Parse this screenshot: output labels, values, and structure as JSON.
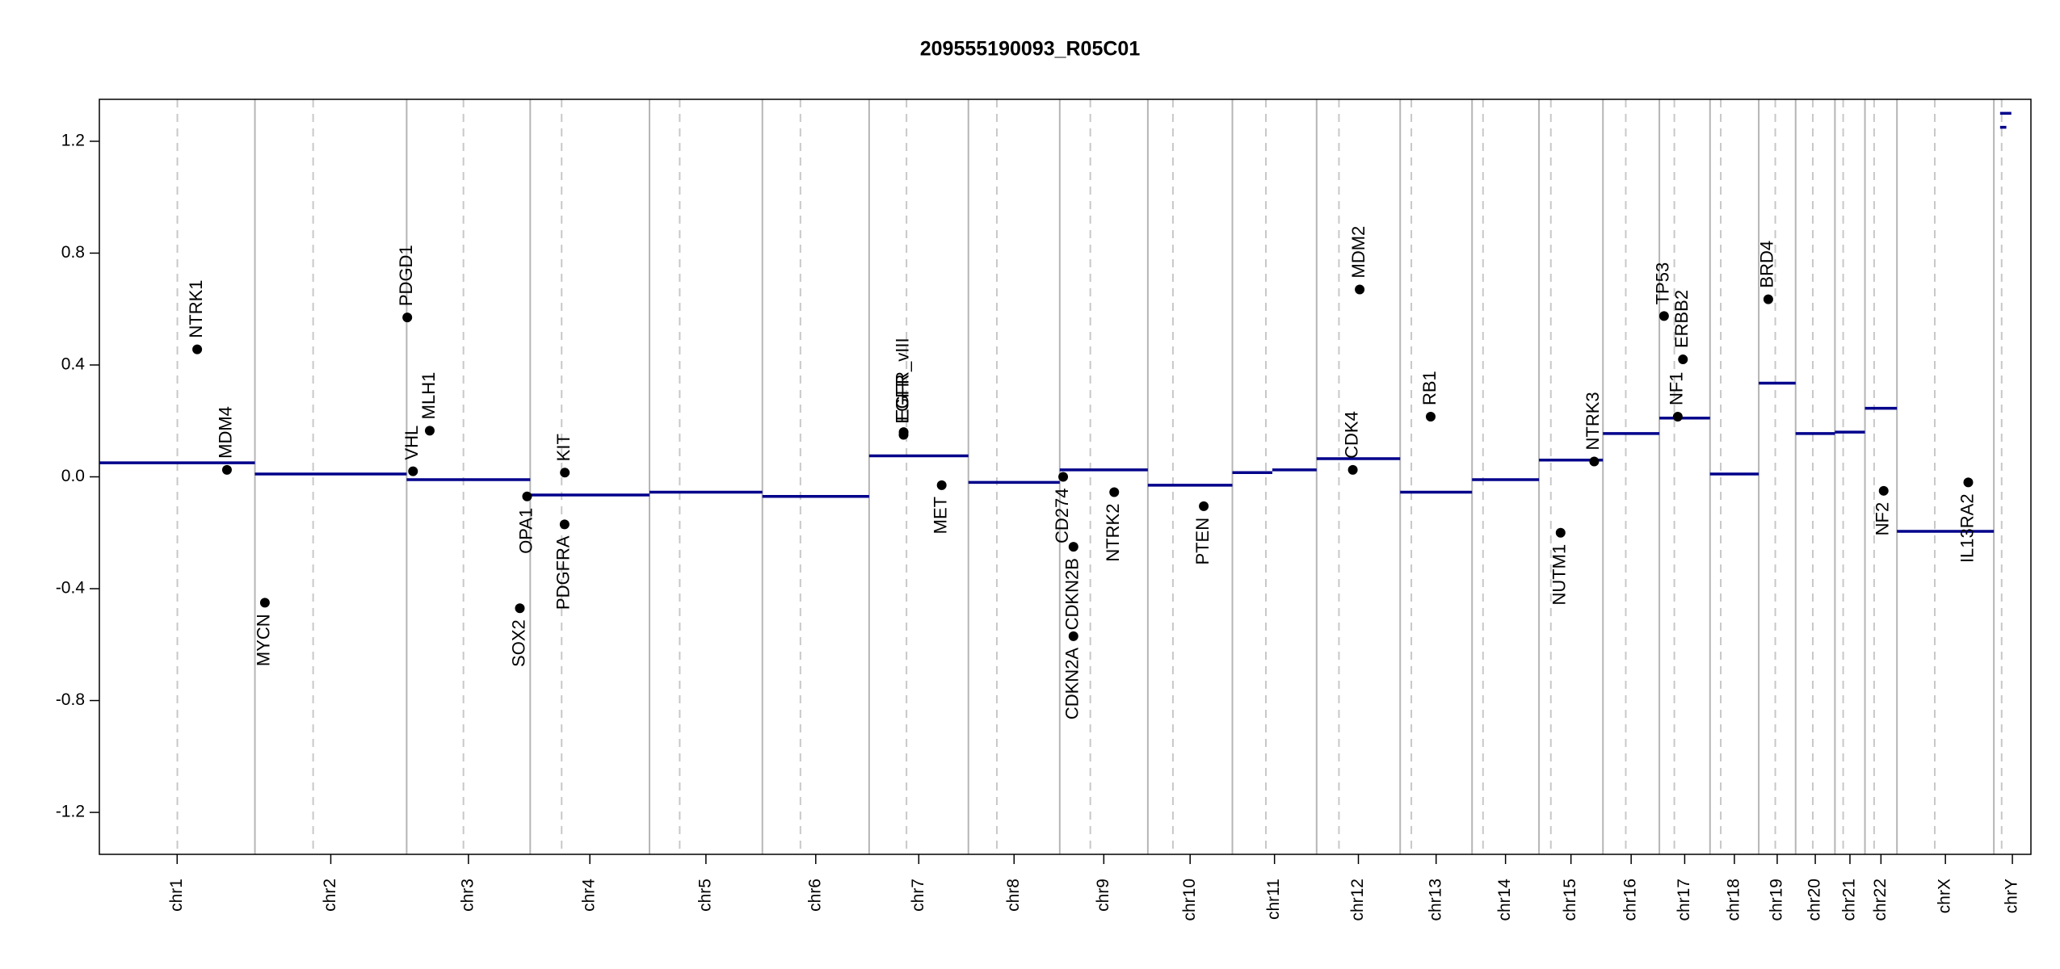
{
  "chart_data": {
    "type": "copy_number",
    "title": "209555190093_R05C01",
    "ylim": [
      -1.35,
      1.35
    ],
    "yticks": [
      -1.2,
      -0.8,
      -0.4,
      {
        "value": 0,
        "label": "0.0"
      },
      0.4,
      0.8,
      1.2
    ],
    "chromosomes": [
      {
        "name": "chr1",
        "length": 249.3,
        "centromere": 125.0
      },
      {
        "name": "chr2",
        "length": 243.2,
        "centromere": 93.3
      },
      {
        "name": "chr3",
        "length": 198.0,
        "centromere": 91.0
      },
      {
        "name": "chr4",
        "length": 191.2,
        "centromere": 50.4
      },
      {
        "name": "chr5",
        "length": 180.9,
        "centromere": 48.4
      },
      {
        "name": "chr6",
        "length": 171.1,
        "centromere": 61.0
      },
      {
        "name": "chr7",
        "length": 159.1,
        "centromere": 59.9
      },
      {
        "name": "chr8",
        "length": 146.4,
        "centromere": 45.6
      },
      {
        "name": "chr9",
        "length": 141.2,
        "centromere": 49.0
      },
      {
        "name": "chr10",
        "length": 135.5,
        "centromere": 40.2
      },
      {
        "name": "chr11",
        "length": 135.0,
        "centromere": 53.7
      },
      {
        "name": "chr12",
        "length": 133.9,
        "centromere": 35.8
      },
      {
        "name": "chr13",
        "length": 115.2,
        "centromere": 17.9
      },
      {
        "name": "chr14",
        "length": 107.3,
        "centromere": 17.6
      },
      {
        "name": "chr15",
        "length": 102.5,
        "centromere": 19.0
      },
      {
        "name": "chr16",
        "length": 90.4,
        "centromere": 36.6
      },
      {
        "name": "chr17",
        "length": 81.2,
        "centromere": 24.0
      },
      {
        "name": "chr18",
        "length": 78.1,
        "centromere": 17.2
      },
      {
        "name": "chr19",
        "length": 59.1,
        "centromere": 26.5
      },
      {
        "name": "chr20",
        "length": 63.0,
        "centromere": 27.5
      },
      {
        "name": "chr21",
        "length": 48.1,
        "centromere": 13.2
      },
      {
        "name": "chr22",
        "length": 51.3,
        "centromere": 14.7
      },
      {
        "name": "chrX",
        "length": 155.3,
        "centromere": 60.6
      },
      {
        "name": "chrY",
        "length": 59.4,
        "centromere": 12.5
      }
    ],
    "segment_color": "#00008b",
    "segments": [
      {
        "chrom": 0,
        "start": 0,
        "end": 249.3,
        "value": 0.05
      },
      {
        "chrom": 1,
        "start": 0,
        "end": 243.2,
        "value": 0.01
      },
      {
        "chrom": 2,
        "start": 0,
        "end": 198.0,
        "value": -0.01
      },
      {
        "chrom": 3,
        "start": 0,
        "end": 191.2,
        "value": -0.065
      },
      {
        "chrom": 4,
        "start": 0,
        "end": 180.9,
        "value": -0.055
      },
      {
        "chrom": 5,
        "start": 0,
        "end": 171.1,
        "value": -0.07
      },
      {
        "chrom": 6,
        "start": 0,
        "end": 159.1,
        "value": 0.075
      },
      {
        "chrom": 7,
        "start": 0,
        "end": 146.4,
        "value": -0.02
      },
      {
        "chrom": 8,
        "start": 0,
        "end": 141.2,
        "value": 0.025
      },
      {
        "chrom": 9,
        "start": 0,
        "end": 135.5,
        "value": -0.03
      },
      {
        "chrom": 10,
        "start": 0,
        "end": 64.0,
        "value": 0.015
      },
      {
        "chrom": 10,
        "start": 64.0,
        "end": 135.0,
        "value": 0.025
      },
      {
        "chrom": 11,
        "start": 0,
        "end": 133.9,
        "value": 0.065
      },
      {
        "chrom": 12,
        "start": 0,
        "end": 115.2,
        "value": -0.055
      },
      {
        "chrom": 13,
        "start": 0,
        "end": 107.3,
        "value": -0.01
      },
      {
        "chrom": 14,
        "start": 0,
        "end": 102.5,
        "value": 0.06
      },
      {
        "chrom": 15,
        "start": 0,
        "end": 90.4,
        "value": 0.155
      },
      {
        "chrom": 16,
        "start": 0,
        "end": 81.2,
        "value": 0.21
      },
      {
        "chrom": 17,
        "start": 0,
        "end": 78.1,
        "value": 0.01
      },
      {
        "chrom": 18,
        "start": 0,
        "end": 59.1,
        "value": 0.335
      },
      {
        "chrom": 19,
        "start": 0,
        "end": 63.0,
        "value": 0.155
      },
      {
        "chrom": 20,
        "start": 0,
        "end": 48.1,
        "value": 0.16
      },
      {
        "chrom": 21,
        "start": 0,
        "end": 51.3,
        "value": 0.245
      },
      {
        "chrom": 22,
        "start": 0,
        "end": 155.3,
        "value": -0.195
      },
      {
        "chrom": 23,
        "start": 10.0,
        "end": 28.0,
        "value": 1.3
      },
      {
        "chrom": 23,
        "start": 10.0,
        "end": 20.0,
        "value": 1.25
      }
    ],
    "genes": [
      {
        "label": "NTRK1",
        "chrom": 0,
        "position": 156.8,
        "value": 0.456,
        "side": "above"
      },
      {
        "label": "MDM4",
        "chrom": 0,
        "position": 204.5,
        "value": 0.025,
        "side": "above"
      },
      {
        "label": "MYCN",
        "chrom": 1,
        "position": 16.0,
        "value": -0.45,
        "side": "below"
      },
      {
        "label": "PDGD1",
        "chrom": 2,
        "position": 1.0,
        "value": 0.57,
        "side": "above"
      },
      {
        "label": "VHL",
        "chrom": 2,
        "position": 10.2,
        "value": 0.02,
        "side": "above"
      },
      {
        "label": "MLH1",
        "chrom": 2,
        "position": 37.0,
        "value": 0.165,
        "side": "above"
      },
      {
        "label": "SOX2",
        "chrom": 2,
        "position": 181.4,
        "value": -0.47,
        "side": "below"
      },
      {
        "label": "OPA1",
        "chrom": 2,
        "position": 193.0,
        "value": -0.07,
        "side": "below"
      },
      {
        "label": "KIT",
        "chrom": 3,
        "position": 55.5,
        "value": 0.015,
        "side": "above"
      },
      {
        "label": "PDGFRA",
        "chrom": 3,
        "position": 55.1,
        "value": -0.17,
        "side": "below"
      },
      {
        "label": "EGFR",
        "chrom": 6,
        "position": 55.2,
        "value": 0.15,
        "side": "above"
      },
      {
        "label": "EGFR_vIII",
        "chrom": 6,
        "position": 55.3,
        "value": 0.16,
        "side": "above"
      },
      {
        "label": "MET",
        "chrom": 6,
        "position": 116.3,
        "value": -0.03,
        "side": "below"
      },
      {
        "label": "CD274",
        "chrom": 8,
        "position": 5.5,
        "value": 0.0,
        "side": "below"
      },
      {
        "label": "CDKN2A",
        "chrom": 8,
        "position": 21.97,
        "value": -0.57,
        "side": "below"
      },
      {
        "label": "CDKN2B",
        "chrom": 8,
        "position": 22.0,
        "value": -0.25,
        "side": "below"
      },
      {
        "label": "NTRK2",
        "chrom": 8,
        "position": 87.3,
        "value": -0.055,
        "side": "below"
      },
      {
        "label": "PTEN",
        "chrom": 9,
        "position": 89.6,
        "value": -0.105,
        "side": "below"
      },
      {
        "label": "CDK4",
        "chrom": 11,
        "position": 58.0,
        "value": 0.025,
        "side": "above"
      },
      {
        "label": "MDM2",
        "chrom": 11,
        "position": 69.0,
        "value": 0.67,
        "side": "above"
      },
      {
        "label": "RB1",
        "chrom": 12,
        "position": 48.9,
        "value": 0.215,
        "side": "above"
      },
      {
        "label": "NUTM1",
        "chrom": 14,
        "position": 34.6,
        "value": -0.2,
        "side": "below"
      },
      {
        "label": "NTRK3",
        "chrom": 14,
        "position": 88.5,
        "value": 0.055,
        "side": "above"
      },
      {
        "label": "TP53",
        "chrom": 16,
        "position": 7.5,
        "value": 0.575,
        "side": "above"
      },
      {
        "label": "NF1",
        "chrom": 16,
        "position": 29.5,
        "value": 0.215,
        "side": "above"
      },
      {
        "label": "ERBB2",
        "chrom": 16,
        "position": 37.8,
        "value": 0.42,
        "side": "above"
      },
      {
        "label": "BRD4",
        "chrom": 18,
        "position": 15.3,
        "value": 0.635,
        "side": "above"
      },
      {
        "label": "NF2",
        "chrom": 21,
        "position": 30.0,
        "value": -0.05,
        "side": "below"
      },
      {
        "label": "IL13RA2",
        "chrom": 22,
        "position": 114.3,
        "value": -0.02,
        "side": "below"
      }
    ]
  }
}
